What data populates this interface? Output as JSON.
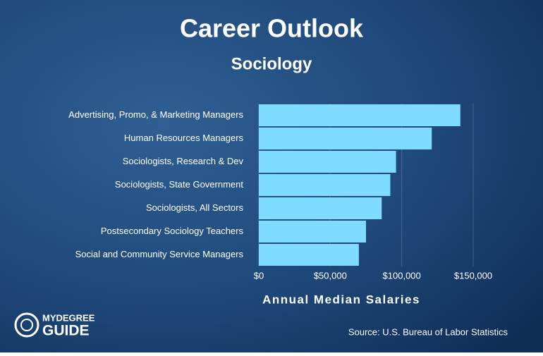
{
  "chart_data": {
    "type": "hbar",
    "title": "Career Outlook",
    "subtitle": "Sociology",
    "categories": [
      "Advertising, Promo, & Marketing Managers",
      "Human Resources Managers",
      "Sociologists, Research & Dev",
      "Sociologists, State Government",
      "Sociologists, All Sectors",
      "Postsecondary Sociology Teachers",
      "Social and Community Service Managers"
    ],
    "values": [
      141000,
      121000,
      96000,
      92000,
      86000,
      75000,
      70000
    ],
    "color": "#7fdcff",
    "xlim": [
      0,
      150000
    ],
    "xticks": [
      {
        "value": 0,
        "label": "$0"
      },
      {
        "value": 50000,
        "label": "$50,000"
      },
      {
        "value": 100000,
        "label": "$100,000"
      },
      {
        "value": 150000,
        "label": "$150,000"
      }
    ],
    "xlabel": "Annual Median Salaries",
    "grid": true,
    "source": "Source: U.S. Bureau of Labor Statistics",
    "logo": [
      "MYDEGREE",
      "GUIDE"
    ]
  }
}
